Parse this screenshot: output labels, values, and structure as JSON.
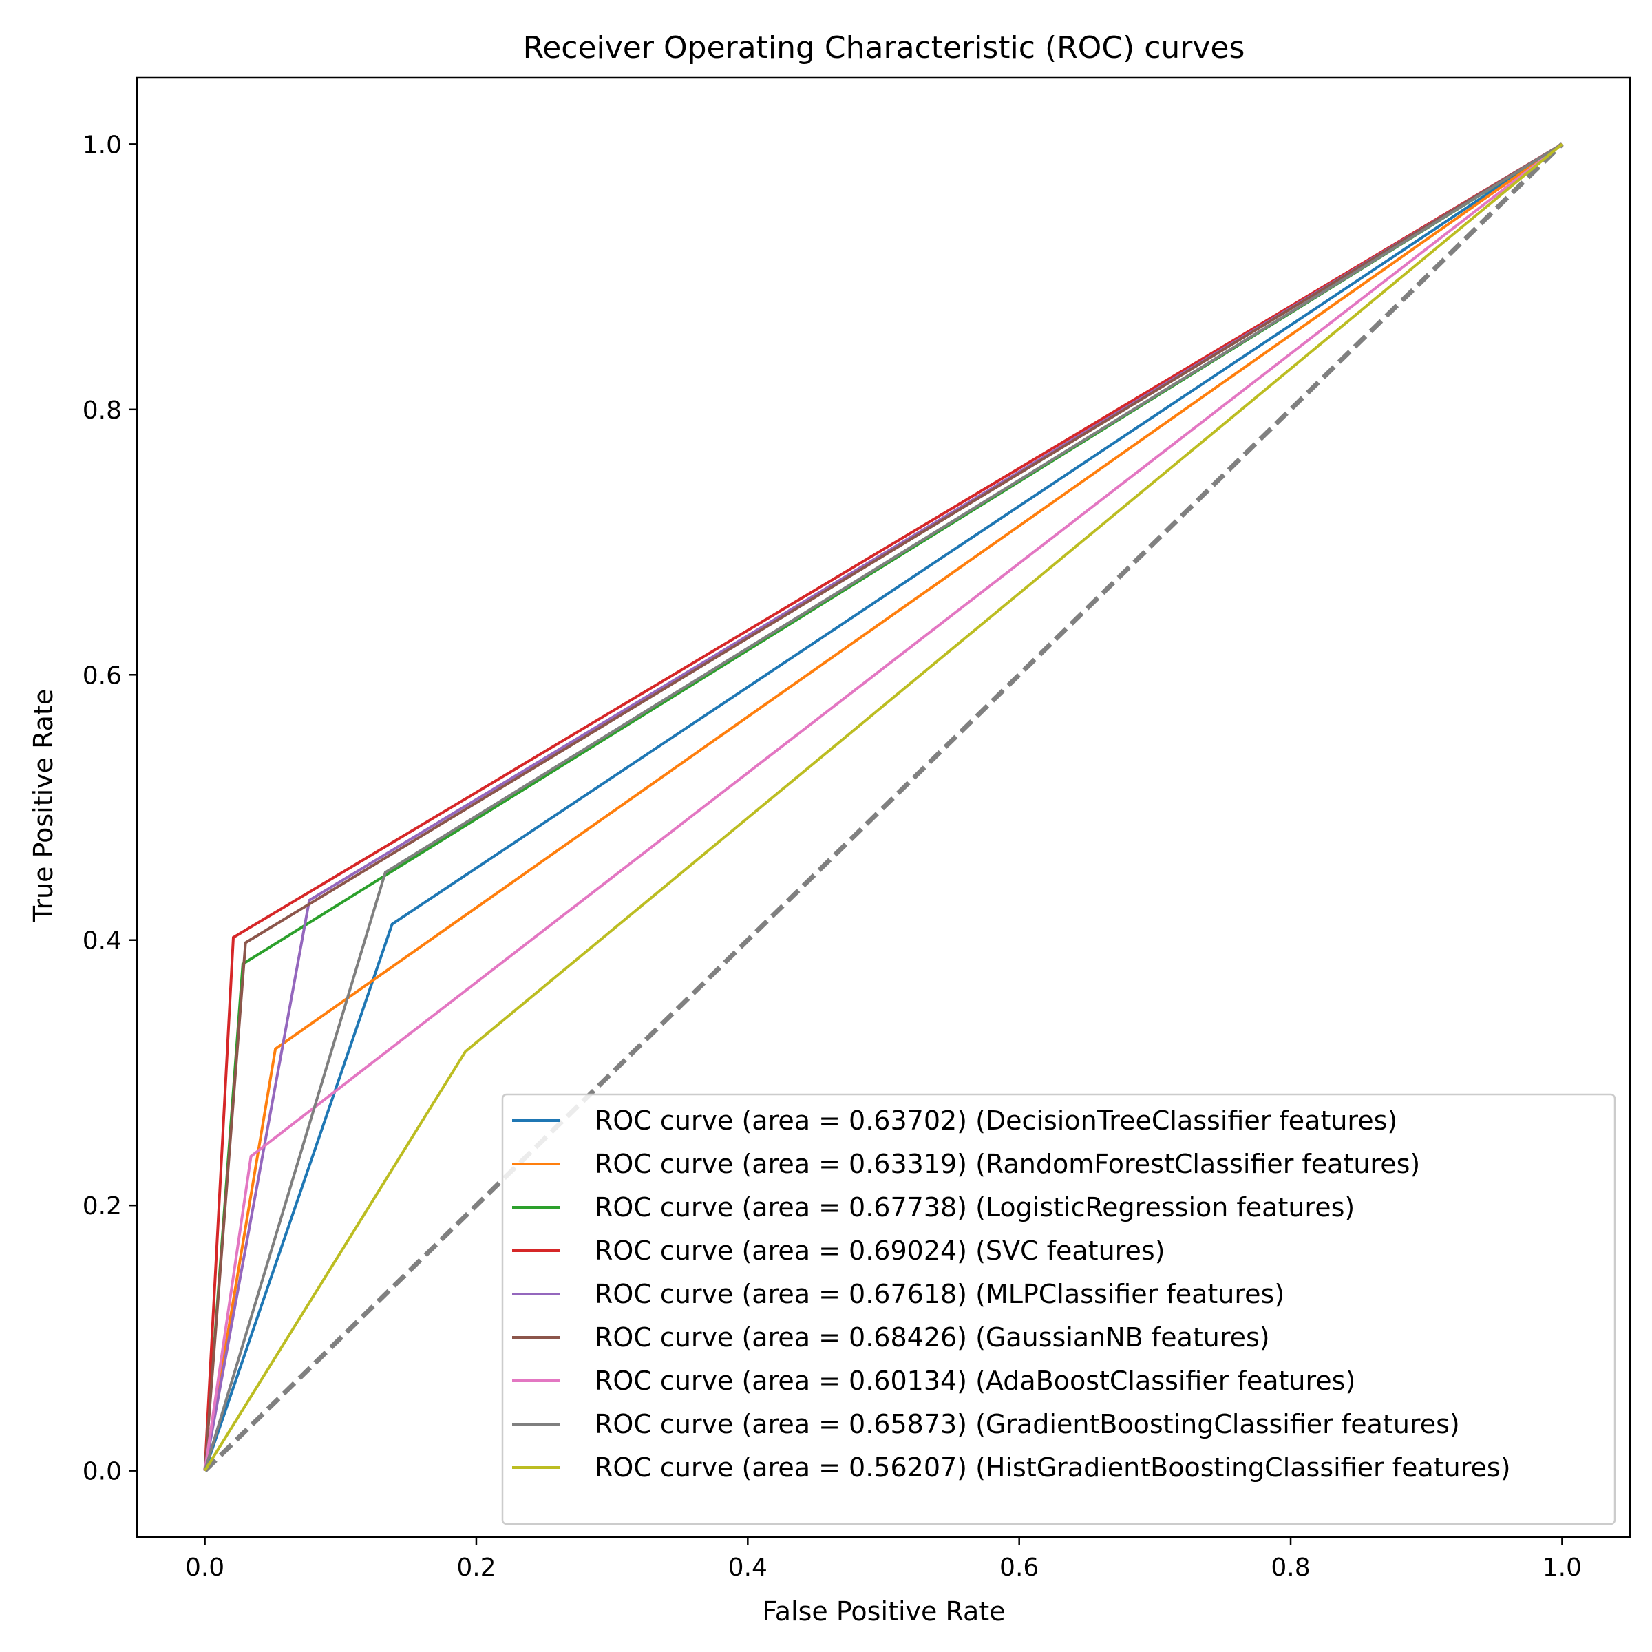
{
  "chart_data": {
    "type": "line",
    "title": "Receiver Operating Characteristic (ROC) curves",
    "xlabel": "False Positive Rate",
    "ylabel": "True Positive Rate",
    "xlim": [
      -0.05,
      1.05
    ],
    "ylim": [
      -0.05,
      1.05
    ],
    "xticks": [
      0.0,
      0.2,
      0.4,
      0.6,
      0.8,
      1.0
    ],
    "xtick_labels": [
      "0.0",
      "0.2",
      "0.4",
      "0.6",
      "0.8",
      "1.0"
    ],
    "yticks": [
      0.0,
      0.2,
      0.4,
      0.6,
      0.8,
      1.0
    ],
    "ytick_labels": [
      "0.0",
      "0.2",
      "0.4",
      "0.6",
      "0.8",
      "1.0"
    ],
    "grid": false,
    "legend_position": "lower-right",
    "diagonal": {
      "x": [
        0,
        1
      ],
      "y": [
        0,
        1
      ],
      "color": "#808080",
      "style": "dashed"
    },
    "series": [
      {
        "name": "ROC curve (area = 0.63702) (DecisionTreeClassifier features)",
        "color": "#1f77b4",
        "x": [
          0,
          0.138,
          1
        ],
        "y": [
          0,
          0.412,
          1
        ]
      },
      {
        "name": "ROC curve (area = 0.63319) (RandomForestClassifier features)",
        "color": "#ff7f0e",
        "x": [
          0,
          0.052,
          1
        ],
        "y": [
          0,
          0.318,
          1
        ]
      },
      {
        "name": "ROC curve (area = 0.67738) (LogisticRegression features)",
        "color": "#2ca02c",
        "x": [
          0,
          0.028,
          1
        ],
        "y": [
          0,
          0.382,
          1
        ]
      },
      {
        "name": "ROC curve (area = 0.69024) (SVC features)",
        "color": "#d62728",
        "x": [
          0,
          0.021,
          1
        ],
        "y": [
          0,
          0.402,
          1
        ]
      },
      {
        "name": "ROC curve (area = 0.67618) (MLPClassifier features)",
        "color": "#9467bd",
        "x": [
          0,
          0.077,
          1
        ],
        "y": [
          0,
          0.43,
          1
        ]
      },
      {
        "name": "ROC curve (area = 0.68426) (GaussianNB features)",
        "color": "#8c564b",
        "x": [
          0,
          0.03,
          1
        ],
        "y": [
          0,
          0.398,
          1
        ]
      },
      {
        "name": "ROC curve (area = 0.60134) (AdaBoostClassifier features)",
        "color": "#e377c2",
        "x": [
          0,
          0.034,
          1
        ],
        "y": [
          0,
          0.237,
          1
        ]
      },
      {
        "name": "ROC curve (area = 0.65873) (GradientBoostingClassifier features)",
        "color": "#7f7f7f",
        "x": [
          0,
          0.133,
          1
        ],
        "y": [
          0,
          0.451,
          1
        ]
      },
      {
        "name": "ROC curve (area = 0.56207) (HistGradientBoostingClassifier features)",
        "color": "#bcbd22",
        "x": [
          0,
          0.192,
          1
        ],
        "y": [
          0,
          0.316,
          1
        ]
      }
    ]
  }
}
